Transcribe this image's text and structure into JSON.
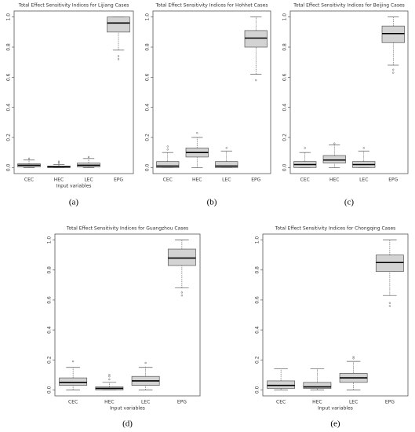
{
  "chart_data": [
    {
      "type": "box",
      "title": "Total Effect Sensitivity Indices for Lijiang Cases",
      "panel_label": "(a)",
      "x_label": "Input variables",
      "categories": [
        "CEC",
        "HEC",
        "LEC",
        "EPG"
      ],
      "color": "#d3d3d3",
      "boxes": [
        {
          "whislo": 0,
          "q1": 0.005,
          "med": 0.015,
          "q3": 0.025,
          "whishi": 0.05,
          "fliers": [
            0.06
          ]
        },
        {
          "whislo": 0,
          "q1": 0,
          "med": 0.005,
          "q3": 0.01,
          "whishi": 0.02,
          "fliers": [
            0.03,
            0.04
          ]
        },
        {
          "whislo": 0,
          "q1": 0.005,
          "med": 0.015,
          "q3": 0.03,
          "whishi": 0.06,
          "fliers": [
            0.07
          ]
        },
        {
          "whislo": 0.78,
          "q1": 0.9,
          "med": 0.96,
          "q3": 1.0,
          "whishi": 1.0,
          "fliers": [
            0.74,
            0.72
          ]
        }
      ],
      "ylim": [
        -0.04,
        1.04
      ],
      "yticks": [
        {
          "value": 0,
          "label": "0.0"
        },
        {
          "value": 0.2,
          "label": "0.2"
        },
        {
          "value": 0.4,
          "label": "0.4"
        },
        {
          "value": 0.6,
          "label": "0.6"
        },
        {
          "value": 0.8,
          "label": "0.8"
        },
        {
          "value": 1,
          "label": "1.0"
        }
      ]
    },
    {
      "type": "box",
      "title": "Total Effect Sensitivity Indices for Hohhot Cases",
      "panel_label": "(b)",
      "categories": [
        "CEC",
        "HEC",
        "LEC",
        "EPG"
      ],
      "color": "#d3d3d3",
      "boxes": [
        {
          "whislo": 0,
          "q1": 0,
          "med": 0.01,
          "q3": 0.04,
          "whishi": 0.1,
          "fliers": [
            0.12,
            0.14
          ]
        },
        {
          "whislo": 0,
          "q1": 0.07,
          "med": 0.1,
          "q3": 0.13,
          "whishi": 0.2,
          "fliers": [
            0.23
          ]
        },
        {
          "whislo": 0,
          "q1": 0,
          "med": 0.01,
          "q3": 0.04,
          "whishi": 0.11,
          "fliers": [
            0.13
          ]
        },
        {
          "whislo": 0.62,
          "q1": 0.8,
          "med": 0.86,
          "q3": 0.91,
          "whishi": 1.0,
          "fliers": [
            0.58
          ]
        }
      ],
      "ylim": [
        -0.04,
        1.04
      ],
      "yticks": [
        {
          "value": 0,
          "label": "0.0"
        },
        {
          "value": 0.2,
          "label": "0.2"
        },
        {
          "value": 0.4,
          "label": "0.4"
        },
        {
          "value": 0.6,
          "label": "0.6"
        },
        {
          "value": 0.8,
          "label": "0.8"
        },
        {
          "value": 1,
          "label": "1.0"
        }
      ]
    },
    {
      "type": "box",
      "title": "Total Effect Sensitivity Indices for Beijing Cases",
      "panel_label": "(c)",
      "categories": [
        "CEC",
        "HEC",
        "LEC",
        "EPG"
      ],
      "color": "#d3d3d3",
      "boxes": [
        {
          "whislo": 0,
          "q1": 0,
          "med": 0.02,
          "q3": 0.04,
          "whishi": 0.1,
          "fliers": [
            0.13
          ]
        },
        {
          "whislo": 0,
          "q1": 0.03,
          "med": 0.05,
          "q3": 0.08,
          "whishi": 0.15,
          "fliers": [
            0.16
          ]
        },
        {
          "whislo": 0,
          "q1": 0,
          "med": 0.02,
          "q3": 0.04,
          "whishi": 0.11,
          "fliers": [
            0.13
          ]
        },
        {
          "whislo": 0.68,
          "q1": 0.83,
          "med": 0.89,
          "q3": 0.94,
          "whishi": 1.0,
          "fliers": [
            0.65,
            0.63
          ]
        }
      ],
      "ylim": [
        -0.04,
        1.04
      ],
      "yticks": [
        {
          "value": 0,
          "label": "0.0"
        },
        {
          "value": 0.2,
          "label": "0.2"
        },
        {
          "value": 0.4,
          "label": "0.4"
        },
        {
          "value": 0.6,
          "label": "0.6"
        },
        {
          "value": 0.8,
          "label": "0.8"
        },
        {
          "value": 1,
          "label": "1.0"
        }
      ]
    },
    {
      "type": "box",
      "title": "Total Effect Sensitivity Indices for Guangzhou Cases",
      "panel_label": "(d)",
      "x_label": "Input variables",
      "categories": [
        "CEC",
        "HEC",
        "LEC",
        "EPG"
      ],
      "color": "#d3d3d3",
      "boxes": [
        {
          "whislo": 0,
          "q1": 0.03,
          "med": 0.05,
          "q3": 0.08,
          "whishi": 0.15,
          "fliers": [
            0.19
          ]
        },
        {
          "whislo": 0,
          "q1": 0,
          "med": 0.01,
          "q3": 0.02,
          "whishi": 0.05,
          "fliers": [
            0.07,
            0.09,
            0.1
          ]
        },
        {
          "whislo": 0,
          "q1": 0.03,
          "med": 0.06,
          "q3": 0.09,
          "whishi": 0.15,
          "fliers": [
            0.18
          ]
        },
        {
          "whislo": 0.68,
          "q1": 0.83,
          "med": 0.88,
          "q3": 0.94,
          "whishi": 1.0,
          "fliers": [
            0.65,
            0.63
          ]
        }
      ],
      "ylim": [
        -0.04,
        1.04
      ],
      "yticks": [
        {
          "value": 0,
          "label": "0.0"
        },
        {
          "value": 0.2,
          "label": "0.2"
        },
        {
          "value": 0.4,
          "label": "0.4"
        },
        {
          "value": 0.6,
          "label": "0.6"
        },
        {
          "value": 0.8,
          "label": "0.8"
        },
        {
          "value": 1,
          "label": "1.0"
        }
      ]
    },
    {
      "type": "box",
      "title": "Total Effect Sensitivity Indices for Chongqing Cases",
      "panel_label": "(e)",
      "x_label": "Input variables",
      "categories": [
        "CEC",
        "HEC",
        "LEC",
        "EPG"
      ],
      "color": "#d3d3d3",
      "boxes": [
        {
          "whislo": 0,
          "q1": 0.01,
          "med": 0.03,
          "q3": 0.06,
          "whishi": 0.14,
          "fliers": []
        },
        {
          "whislo": 0,
          "q1": 0.01,
          "med": 0.02,
          "q3": 0.05,
          "whishi": 0.14,
          "fliers": []
        },
        {
          "whislo": 0,
          "q1": 0.05,
          "med": 0.08,
          "q3": 0.11,
          "whishi": 0.19,
          "fliers": [
            0.21,
            0.22
          ]
        },
        {
          "whislo": 0.63,
          "q1": 0.79,
          "med": 0.85,
          "q3": 0.9,
          "whishi": 1.0,
          "fliers": [
            0.58,
            0.56
          ]
        }
      ],
      "ylim": [
        -0.04,
        1.04
      ],
      "yticks": [
        {
          "value": 0,
          "label": "0.0"
        },
        {
          "value": 0.2,
          "label": "0.2"
        },
        {
          "value": 0.4,
          "label": "0.4"
        },
        {
          "value": 0.6,
          "label": "0.6"
        },
        {
          "value": 0.8,
          "label": "0.8"
        },
        {
          "value": 1,
          "label": "1.0"
        }
      ]
    }
  ]
}
